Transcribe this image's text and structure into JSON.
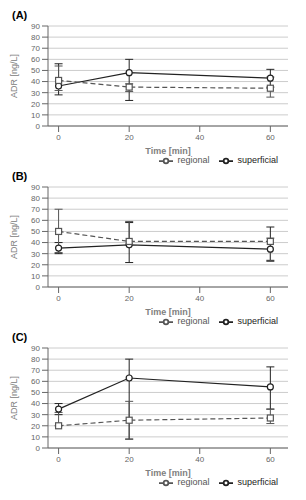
{
  "chart_data": [
    {
      "type": "line",
      "title": "(A)",
      "x": [
        0,
        20,
        60
      ],
      "xlabel": "Time [min]",
      "ylabel": "ADR [ng/L]",
      "xlim": [
        -3,
        65
      ],
      "xticks": [
        0,
        20,
        40,
        60
      ],
      "ylim": [
        0,
        90
      ],
      "yticks": [
        0,
        10,
        20,
        30,
        40,
        50,
        60,
        70,
        80,
        90
      ],
      "grid": "y",
      "legend": "lower right",
      "series": [
        {
          "name": "superficial",
          "color": "#222222",
          "marker": "circle",
          "line_style": "solid",
          "values": [
            36,
            48,
            43
          ],
          "yerr_lo": [
            8,
            25,
            8
          ],
          "yerr_hi": [
            20,
            12,
            8
          ]
        },
        {
          "name": "regional",
          "color": "#555555",
          "marker": "square",
          "line_style": "dashed",
          "values": [
            41,
            35,
            34
          ],
          "yerr_lo": [
            9,
            4,
            8
          ],
          "yerr_hi": [
            13,
            3,
            10
          ]
        }
      ]
    },
    {
      "type": "line",
      "title": "(B)",
      "x": [
        0,
        20,
        60
      ],
      "xlabel": "Time [min]",
      "ylabel": "ADR [ng/L]",
      "xlim": [
        -3,
        65
      ],
      "xticks": [
        0,
        20,
        40,
        60
      ],
      "ylim": [
        0,
        90
      ],
      "yticks": [
        0,
        10,
        20,
        30,
        40,
        50,
        60,
        70,
        80,
        90
      ],
      "grid": "y",
      "legend": "lower right",
      "series": [
        {
          "name": "superficial",
          "color": "#222222",
          "marker": "circle",
          "line_style": "solid",
          "values": [
            35,
            38,
            34
          ],
          "yerr_lo": [
            5,
            16,
            10
          ],
          "yerr_hi": [
            5,
            20,
            20
          ]
        },
        {
          "name": "regional",
          "color": "#555555",
          "marker": "square",
          "line_style": "dashed",
          "values": [
            50,
            41,
            41
          ],
          "yerr_lo": [
            19,
            3,
            18
          ],
          "yerr_hi": [
            20,
            18,
            3
          ]
        }
      ]
    },
    {
      "type": "line",
      "title": "(C)",
      "x": [
        0,
        20,
        60
      ],
      "xlabel": "Time [min]",
      "ylabel": "ADR [ng/L]",
      "xlim": [
        -3,
        65
      ],
      "xticks": [
        0,
        20,
        40,
        60
      ],
      "ylim": [
        0,
        90
      ],
      "yticks": [
        0,
        10,
        20,
        30,
        40,
        50,
        60,
        70,
        80,
        90
      ],
      "grid": "y",
      "legend": "lower right",
      "series": [
        {
          "name": "superficial",
          "color": "#222222",
          "marker": "circle",
          "line_style": "solid",
          "values": [
            35,
            63,
            55
          ],
          "yerr_lo": [
            5,
            55,
            20
          ],
          "yerr_hi": [
            5,
            17,
            18
          ]
        },
        {
          "name": "regional",
          "color": "#555555",
          "marker": "square",
          "line_style": "dashed",
          "values": [
            20,
            25,
            27
          ],
          "yerr_lo": [
            0,
            17,
            5
          ],
          "yerr_hi": [
            12,
            17,
            8
          ]
        }
      ]
    }
  ]
}
